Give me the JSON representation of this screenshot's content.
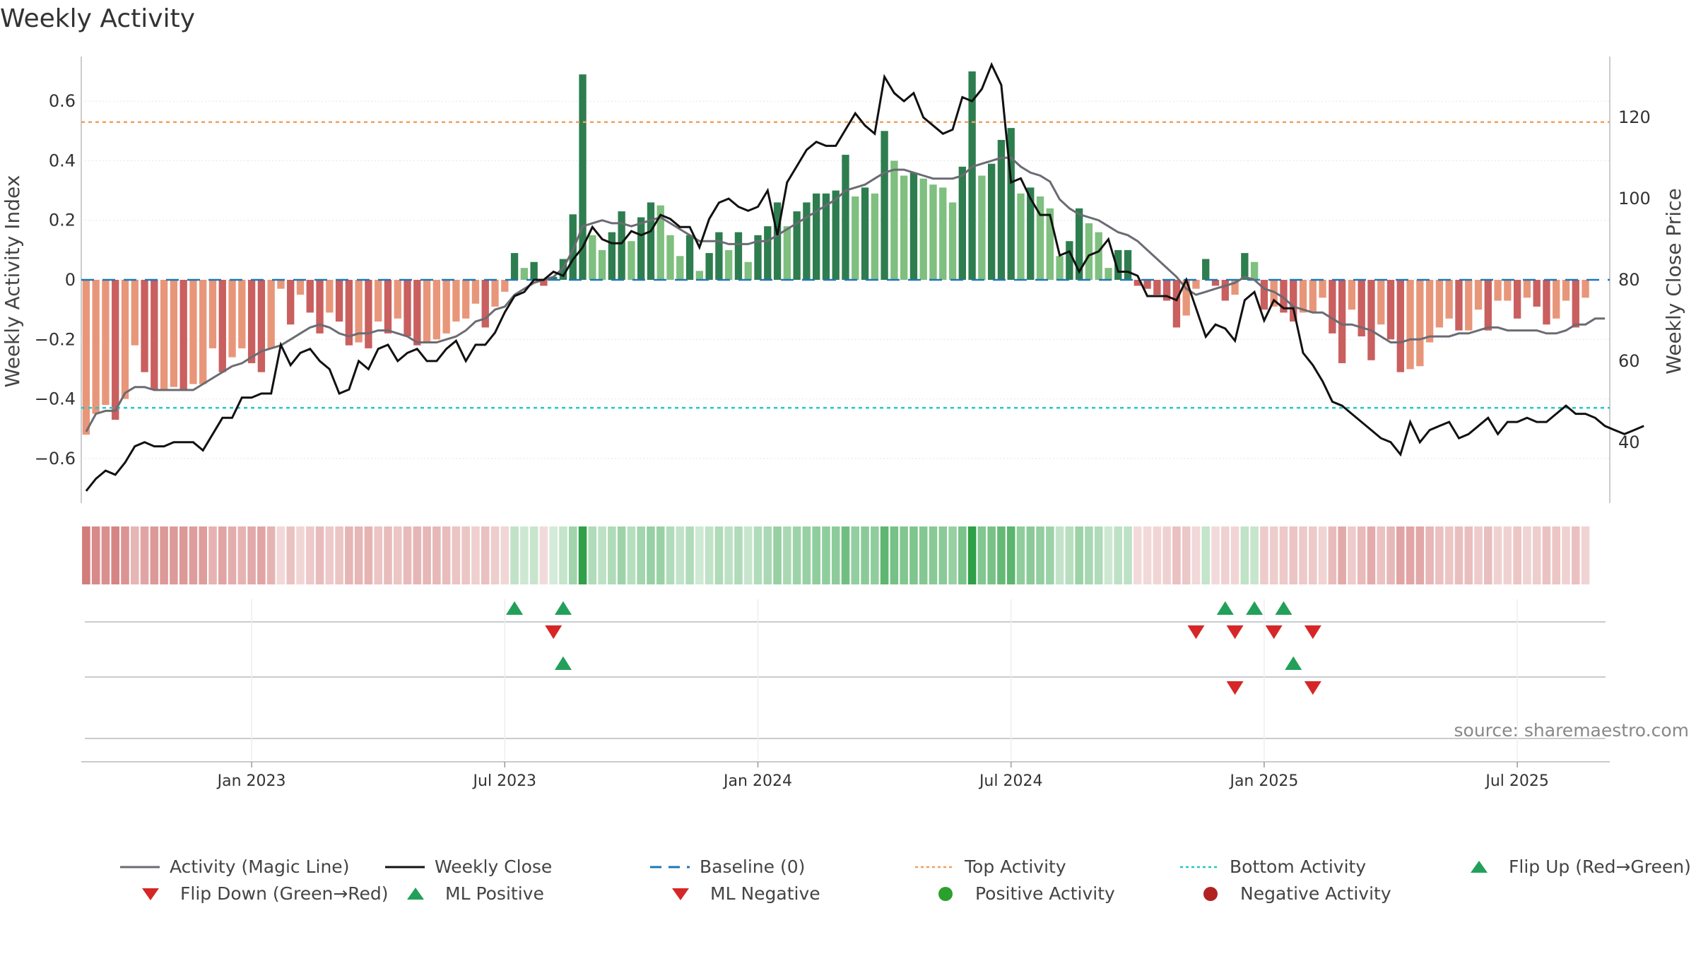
{
  "title": "Weekly Activity",
  "source": "source: sharemaestro.com",
  "chart_data": {
    "type": "bar",
    "y_left_label": "Weekly Activity Index",
    "y_right_label": "Weekly Close Price",
    "y_left_ticks": [
      0.6,
      0.4,
      0.2,
      0,
      -0.2,
      -0.4,
      -0.6
    ],
    "y_left_tick_labels": [
      "0.6",
      "0.4",
      "0.2",
      "0",
      "−0.2",
      "−0.4",
      "−0.6"
    ],
    "y_right_ticks": [
      120,
      100,
      80,
      60,
      40
    ],
    "ylim_left": [
      -0.75,
      0.75
    ],
    "ylim_right": [
      25,
      135
    ],
    "x_tick_labels": [
      "Jan 2023",
      "Jul 2023",
      "Jan 2024",
      "Jul 2024",
      "Jan 2025",
      "Jul 2025"
    ],
    "x_tick_weeks": [
      17,
      43,
      69,
      95,
      121,
      147
    ],
    "week_count": 157,
    "top_activity": 0.53,
    "bottom_activity": -0.43,
    "baseline": 0,
    "activity": [
      -0.52,
      -0.45,
      -0.42,
      -0.47,
      -0.4,
      -0.22,
      -0.31,
      -0.37,
      -0.37,
      -0.36,
      -0.37,
      -0.35,
      -0.35,
      -0.23,
      -0.31,
      -0.26,
      -0.23,
      -0.28,
      -0.31,
      -0.23,
      -0.03,
      -0.15,
      -0.05,
      -0.11,
      -0.18,
      -0.11,
      -0.14,
      -0.22,
      -0.21,
      -0.23,
      -0.14,
      -0.18,
      -0.13,
      -0.19,
      -0.22,
      -0.21,
      -0.2,
      -0.18,
      -0.14,
      -0.13,
      -0.08,
      -0.16,
      -0.09,
      -0.04,
      0.09,
      0.04,
      0.06,
      -0.02,
      0.01,
      0.07,
      0.22,
      0.69,
      0.15,
      0.1,
      0.16,
      0.23,
      0.13,
      0.21,
      0.26,
      0.25,
      0.15,
      0.08,
      0.15,
      0.03,
      0.09,
      0.16,
      0.1,
      0.16,
      0.06,
      0.15,
      0.18,
      0.26,
      0.18,
      0.23,
      0.26,
      0.29,
      0.29,
      0.3,
      0.42,
      0.28,
      0.31,
      0.29,
      0.5,
      0.4,
      0.35,
      0.36,
      0.34,
      0.32,
      0.31,
      0.26,
      0.38,
      0.7,
      0.35,
      0.39,
      0.47,
      0.51,
      0.29,
      0.31,
      0.28,
      0.24,
      0.08,
      0.13,
      0.24,
      0.19,
      0.16,
      0.04,
      0.1,
      0.1,
      -0.02,
      -0.03,
      -0.05,
      -0.07,
      -0.16,
      -0.12,
      -0.03,
      0.07,
      -0.02,
      -0.07,
      -0.05,
      0.09,
      0.06,
      -0.1,
      -0.09,
      -0.11,
      -0.14,
      -0.11,
      -0.11,
      -0.06,
      -0.18,
      -0.28,
      -0.1,
      -0.19,
      -0.27,
      -0.15,
      -0.2,
      -0.31,
      -0.3,
      -0.29,
      -0.21,
      -0.16,
      -0.13,
      -0.17,
      -0.17,
      -0.1,
      -0.17,
      -0.07,
      -0.07,
      -0.13,
      -0.06,
      -0.09,
      -0.15,
      -0.13,
      -0.07,
      -0.16,
      -0.06
    ],
    "magic_line": [
      -0.51,
      -0.45,
      -0.44,
      -0.44,
      -0.38,
      -0.36,
      -0.36,
      -0.37,
      -0.37,
      -0.37,
      -0.37,
      -0.37,
      -0.35,
      -0.33,
      -0.31,
      -0.29,
      -0.28,
      -0.26,
      -0.24,
      -0.23,
      -0.22,
      -0.2,
      -0.18,
      -0.16,
      -0.15,
      -0.16,
      -0.18,
      -0.19,
      -0.18,
      -0.18,
      -0.17,
      -0.17,
      -0.18,
      -0.19,
      -0.21,
      -0.21,
      -0.21,
      -0.2,
      -0.19,
      -0.17,
      -0.14,
      -0.13,
      -0.1,
      -0.09,
      -0.05,
      -0.03,
      -0.01,
      0.0,
      0.01,
      0.04,
      0.1,
      0.18,
      0.19,
      0.2,
      0.19,
      0.19,
      0.18,
      0.19,
      0.2,
      0.21,
      0.19,
      0.17,
      0.15,
      0.13,
      0.13,
      0.13,
      0.12,
      0.12,
      0.12,
      0.13,
      0.13,
      0.15,
      0.17,
      0.19,
      0.21,
      0.23,
      0.25,
      0.27,
      0.3,
      0.31,
      0.32,
      0.34,
      0.36,
      0.37,
      0.37,
      0.36,
      0.35,
      0.34,
      0.34,
      0.34,
      0.35,
      0.38,
      0.39,
      0.4,
      0.41,
      0.41,
      0.38,
      0.36,
      0.35,
      0.33,
      0.27,
      0.24,
      0.22,
      0.21,
      0.2,
      0.18,
      0.16,
      0.15,
      0.13,
      0.1,
      0.07,
      0.04,
      0.01,
      -0.03,
      -0.05,
      -0.04,
      -0.03,
      -0.02,
      -0.01,
      0.01,
      0.0,
      -0.03,
      -0.04,
      -0.06,
      -0.09,
      -0.1,
      -0.11,
      -0.11,
      -0.13,
      -0.15,
      -0.15,
      -0.16,
      -0.17,
      -0.19,
      -0.21,
      -0.21,
      -0.2,
      -0.2,
      -0.19,
      -0.19,
      -0.19,
      -0.18,
      -0.18,
      -0.17,
      -0.16,
      -0.16,
      -0.17,
      -0.17,
      -0.17,
      -0.17,
      -0.18,
      -0.18,
      -0.17,
      -0.15,
      -0.15,
      -0.13,
      -0.13
    ],
    "close_price": [
      28,
      31,
      33,
      32,
      35,
      39,
      40,
      39,
      39,
      40,
      40,
      40,
      38,
      42,
      46,
      46,
      51,
      51,
      52,
      52,
      64,
      59,
      62,
      63,
      60,
      58,
      52,
      53,
      60,
      58,
      63,
      64,
      60,
      62,
      63,
      60,
      60,
      63,
      65,
      60,
      64,
      64,
      67,
      72,
      76,
      77,
      80,
      80,
      82,
      81,
      85,
      88,
      93,
      90,
      89,
      89,
      92,
      91,
      92,
      96,
      95,
      93,
      93,
      88,
      95,
      99,
      100,
      98,
      97,
      98,
      102,
      91,
      104,
      108,
      112,
      114,
      113,
      113,
      117,
      121,
      118,
      116,
      130,
      126,
      124,
      126,
      120,
      118,
      116,
      117,
      125,
      124,
      127,
      133,
      128,
      104,
      105,
      100,
      96,
      96,
      86,
      87,
      82,
      86,
      87,
      90,
      82,
      82,
      81,
      76,
      76,
      76,
      75,
      80,
      73,
      66,
      69,
      68,
      65,
      75,
      77,
      70,
      75,
      73,
      73,
      62,
      59,
      55,
      50,
      49,
      47,
      45,
      43,
      41,
      40,
      37,
      45,
      40,
      43,
      44,
      45,
      41,
      42,
      44,
      46,
      42,
      45,
      45,
      46,
      45,
      45,
      47,
      49,
      47,
      47,
      46,
      44,
      43,
      42,
      43,
      44
    ]
  },
  "signals": {
    "flip_up_weeks": [
      44,
      49,
      117,
      120,
      123
    ],
    "flip_down_weeks": [
      48,
      114,
      118,
      122,
      126
    ],
    "ml_positive_weeks": [
      49,
      124
    ],
    "ml_negative_weeks": [
      118,
      126
    ],
    "positive_activity_weeks": [],
    "negative_activity_weeks": []
  },
  "colors": {
    "positive_strong": "#2E7D4F",
    "positive_light": "#7FBF7F",
    "negative_strong": "#C95F5F",
    "negative_light": "#E8967A",
    "magic_line": "#6B6B73",
    "close_line": "#111111",
    "baseline": "#1F77B4",
    "top_activity": "#F0A060",
    "bottom_activity": "#20C8C8",
    "flip_up": "#22A05A",
    "flip_down": "#D62728",
    "positive_activity": "#2CA02C",
    "negative_activity": "#B22222"
  },
  "legend": [
    {
      "label": "Activity (Magic Line)",
      "symbol": "line",
      "color": "#6B6B73"
    },
    {
      "label": "Weekly Close",
      "symbol": "line",
      "color": "#111111"
    },
    {
      "label": "Baseline (0)",
      "symbol": "dash",
      "color": "#1F77B4"
    },
    {
      "label": "Top Activity",
      "symbol": "dot",
      "color": "#F0A060"
    },
    {
      "label": "Bottom Activity",
      "symbol": "dot",
      "color": "#20C8C8"
    },
    {
      "label": "Flip Up (Red→Green)",
      "symbol": "tri-up",
      "color": "#22A05A"
    },
    {
      "label": "Flip Down (Green→Red)",
      "symbol": "tri-down",
      "color": "#D62728"
    },
    {
      "label": "ML Positive",
      "symbol": "tri-up",
      "color": "#22A05A"
    },
    {
      "label": "ML Negative",
      "symbol": "tri-down",
      "color": "#D62728"
    },
    {
      "label": "Positive Activity",
      "symbol": "circle",
      "color": "#2CA02C"
    },
    {
      "label": "Negative Activity",
      "symbol": "circle",
      "color": "#B22222"
    }
  ]
}
